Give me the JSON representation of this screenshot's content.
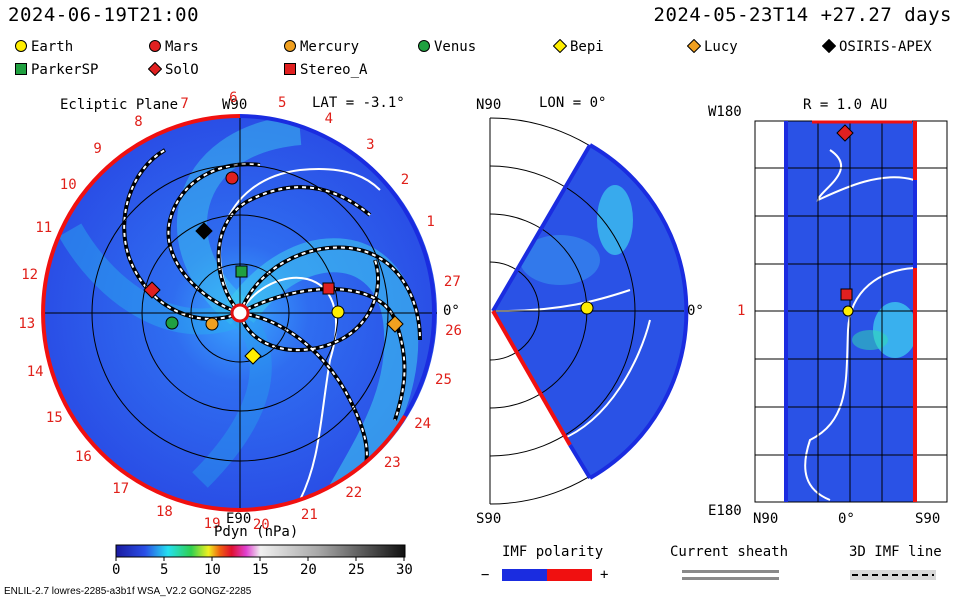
{
  "header": {
    "left_time": "2024-06-19T21:00",
    "right_time": "2024-05-23T14 +27.27 days"
  },
  "bodies": [
    {
      "name": "Earth",
      "marker": "circle",
      "color": "#ffee00"
    },
    {
      "name": "Mars",
      "marker": "circle",
      "color": "#e02020"
    },
    {
      "name": "Mercury",
      "marker": "circle",
      "color": "#f0a020"
    },
    {
      "name": "Venus",
      "marker": "circle",
      "color": "#20a040"
    },
    {
      "name": "Bepi",
      "marker": "diamond",
      "color": "#ffee00"
    },
    {
      "name": "Lucy",
      "marker": "diamond",
      "color": "#f0a020"
    },
    {
      "name": "OSIRIS-APEX",
      "marker": "diamond",
      "color": "#000000"
    },
    {
      "name": "ParkerSP",
      "marker": "square",
      "color": "#20a040"
    },
    {
      "name": "SolO",
      "marker": "diamond",
      "color": "#e02020"
    },
    {
      "name": "Stereo_A",
      "marker": "square",
      "color": "#e02020"
    }
  ],
  "panels": {
    "ecliptic": {
      "title": "Ecliptic Plane",
      "lat_label": "LAT = -3.1°",
      "top_label": "W90",
      "bottom_label": "E90",
      "right_label": "0°",
      "day_ticks": [
        "1",
        "2",
        "3",
        "4",
        "5",
        "6",
        "7",
        "8",
        "9",
        "10",
        "11",
        "12",
        "13",
        "14",
        "15",
        "16",
        "17",
        "18",
        "19",
        "20",
        "21",
        "22",
        "23",
        "24",
        "25",
        "26",
        "27"
      ]
    },
    "meridional": {
      "lon_label": "LON = 0°",
      "top_label": "N90",
      "bottom_label": "S90",
      "right_label": "0°"
    },
    "radial": {
      "title": "R = 1.0 AU",
      "top_label": "W180",
      "bottom_label": "E180",
      "mid_label": "1",
      "x_labels": [
        "N90",
        "0°",
        "S90"
      ]
    }
  },
  "colorbar": {
    "title": "Pdyn (nPa)",
    "ticks": [
      "0",
      "5",
      "10",
      "15",
      "20",
      "25",
      "30"
    ]
  },
  "legend_boxes": {
    "imf_polarity": "IMF polarity",
    "minus": "−",
    "plus": "+",
    "current_sheath": "Current sheath",
    "imf_line": "3D IMF line"
  },
  "footer": "ENLIL-2.7 lowres-2285-a3b1f WSA_V2.2 GONGZ-2285",
  "colors": {
    "field_blue": "#2a52e6",
    "imf_negative": "#1a2ce0",
    "imf_positive": "#f01010",
    "grid": "#000000"
  },
  "chart_data": {
    "type": "heatmap",
    "title": "Ecliptic Plane",
    "quantity": "Pdyn (nPa)",
    "range": [
      0,
      30
    ],
    "colorbar_ticks": [
      0,
      5,
      10,
      15,
      20,
      25,
      30
    ],
    "planet_positions_visible": [
      "Earth",
      "Mars",
      "Mercury",
      "Venus",
      "Bepi",
      "Lucy",
      "OSIRIS-APEX",
      "ParkerSP",
      "SolO",
      "Stereo_A"
    ]
  }
}
